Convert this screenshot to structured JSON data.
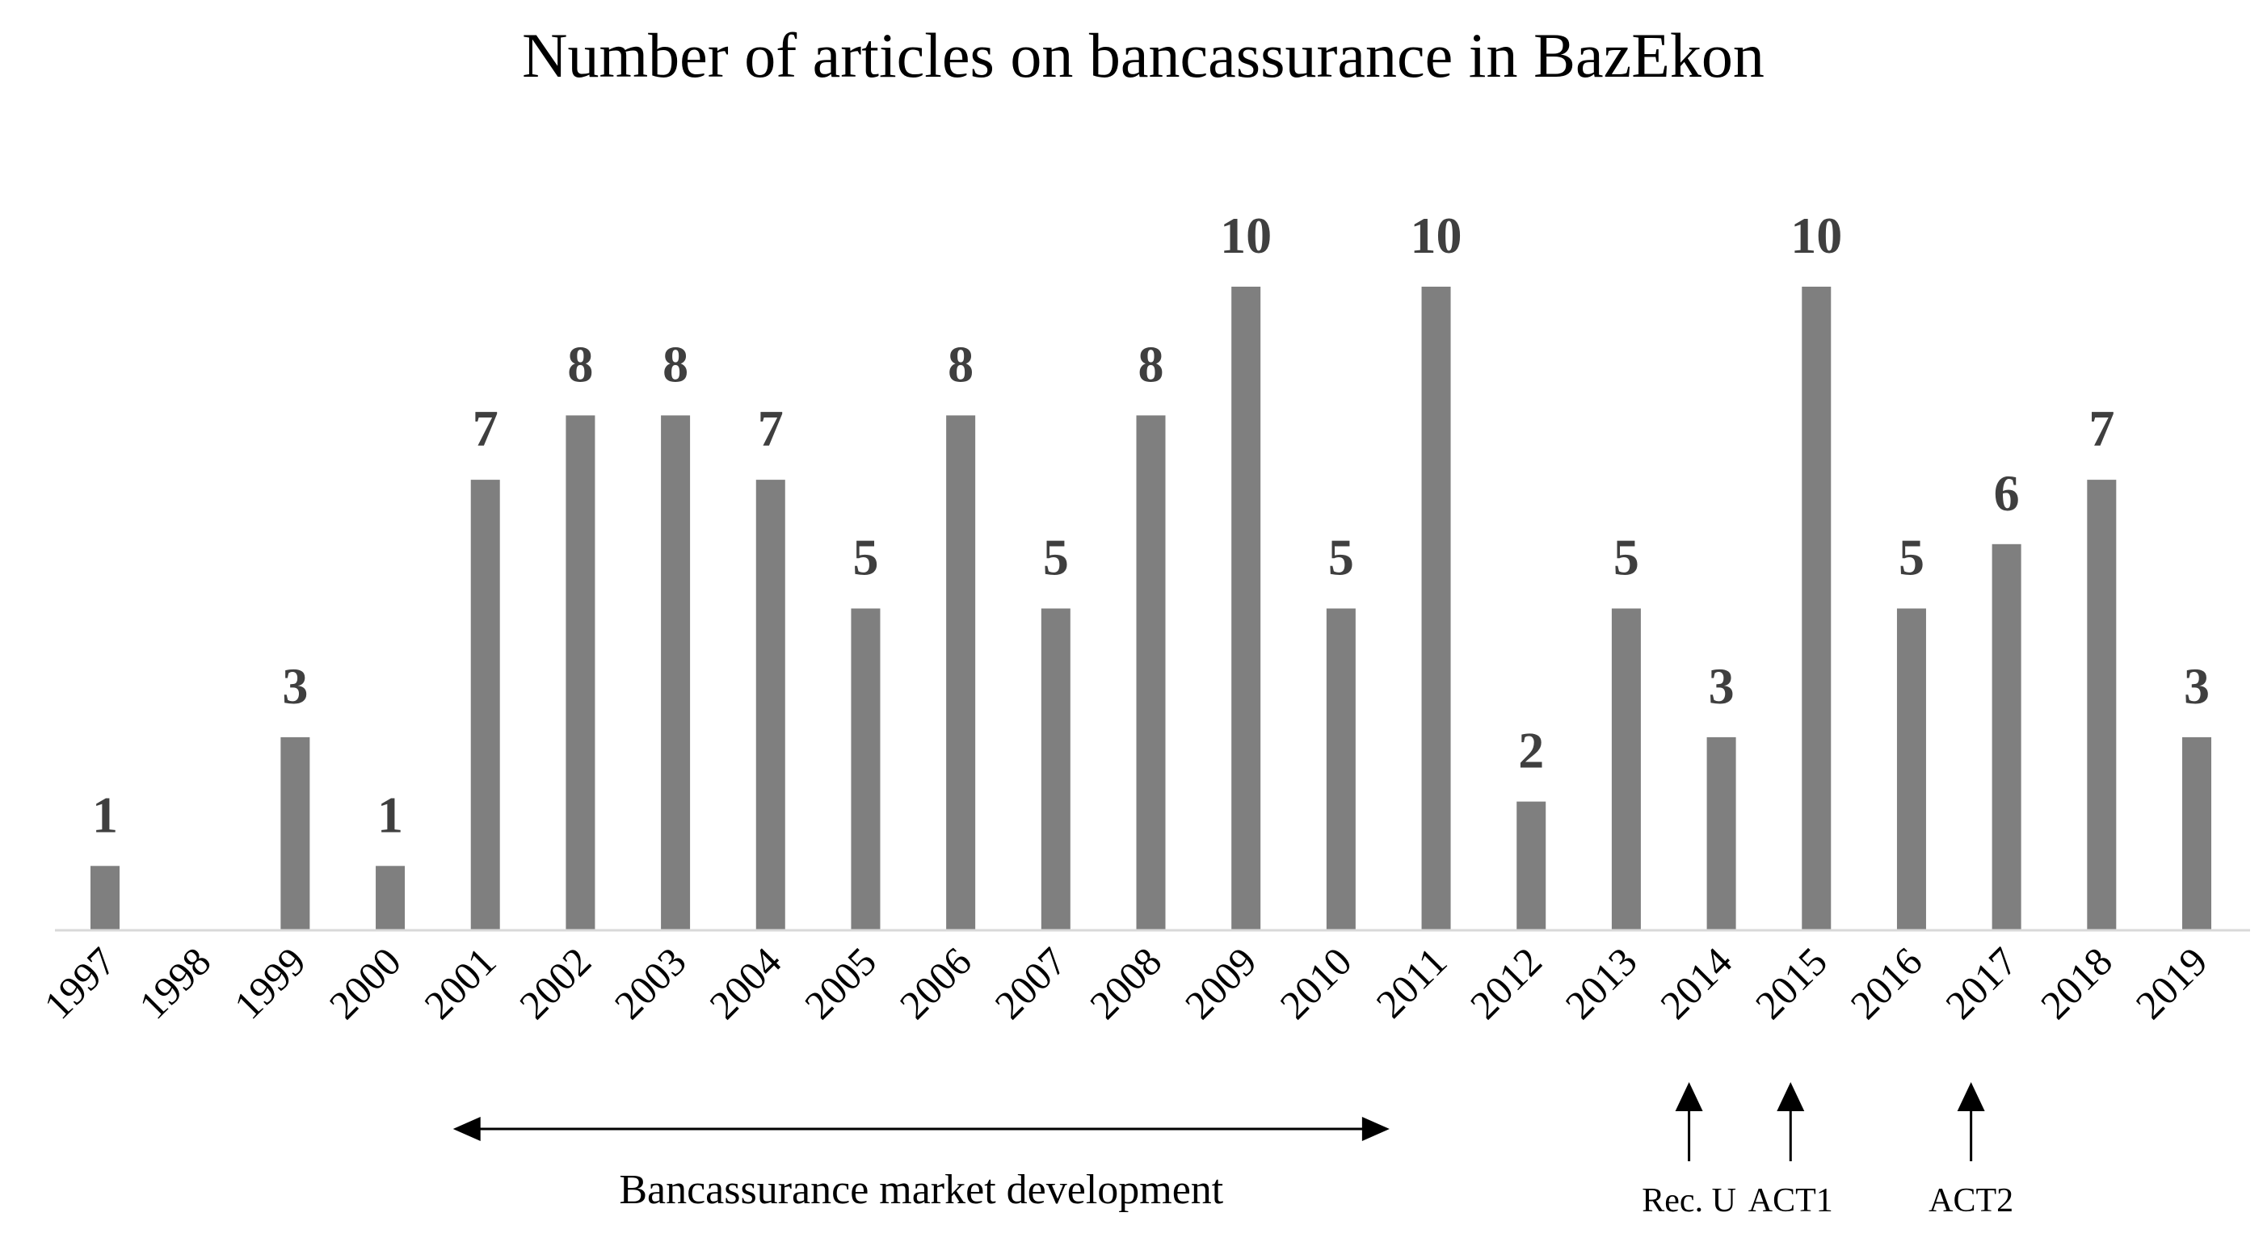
{
  "chart_data": {
    "type": "bar",
    "title": "Number of articles on bancassurance  in BazEkon",
    "xlabel": "",
    "ylabel": "",
    "ylim": [
      0,
      10
    ],
    "grid": false,
    "legend": "none",
    "bar_color": "#7f7f7f",
    "label_color": "#3f3f3f",
    "categories": [
      "1997",
      "1998",
      "1999",
      "2000",
      "2001",
      "2002",
      "2003",
      "2004",
      "2005",
      "2006",
      "2007",
      "2008",
      "2009",
      "2010",
      "2011",
      "2012",
      "2013",
      "2014",
      "2015",
      "2016",
      "2017",
      "2018",
      "2019"
    ],
    "values": [
      1,
      0,
      3,
      1,
      7,
      8,
      8,
      7,
      5,
      8,
      5,
      8,
      10,
      5,
      10,
      2,
      5,
      3,
      10,
      5,
      6,
      7,
      3
    ],
    "data_labels": [
      "1",
      "",
      "3",
      "1",
      "7",
      "8",
      "8",
      "7",
      "5",
      "8",
      "5",
      "8",
      "10",
      "5",
      "10",
      "2",
      "5",
      "3",
      "10",
      "5",
      "6",
      "7",
      "3"
    ],
    "annotations": {
      "range": {
        "label": "Bancassurance market development",
        "from": "2001",
        "to": "2010"
      },
      "markers": [
        {
          "label": "Rec. U",
          "at": "2014"
        },
        {
          "label": "ACT1",
          "at": "2015"
        },
        {
          "label": "ACT2",
          "at": "2017"
        }
      ]
    }
  }
}
